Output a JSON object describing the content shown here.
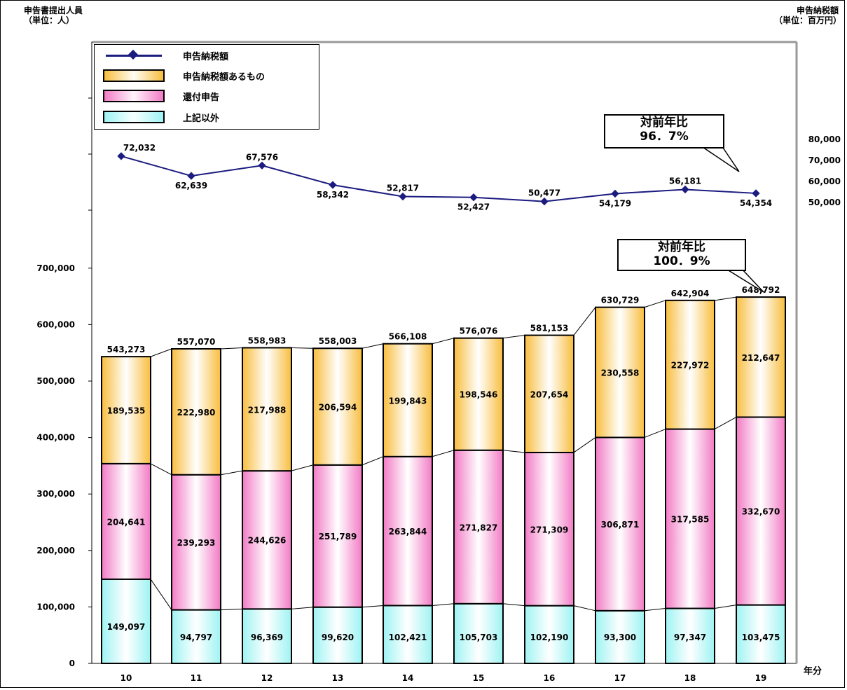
{
  "header": {
    "left_title": "申告書提出人員",
    "left_unit": "（単位：人）",
    "right_title": "申告納税額",
    "right_unit": "（単位：百万円）",
    "x_unit": "年分"
  },
  "legend": {
    "items": [
      {
        "label": "申告納税額",
        "icon": "line-diamond-marker"
      },
      {
        "label": "申告納税額あるもの",
        "color": "#f8bd3e"
      },
      {
        "label": "還付申告",
        "color": "#f27bc5"
      },
      {
        "label": "上記以外",
        "color": "#9ff3f3"
      }
    ]
  },
  "callouts": {
    "tax": {
      "line1": "対前年比",
      "line2": "96．7%"
    },
    "filers": {
      "line1": "対前年比",
      "line2": "100．9%"
    }
  },
  "chart_data": {
    "type": "bar",
    "stacked": true,
    "categories": [
      "10",
      "11",
      "12",
      "13",
      "14",
      "15",
      "16",
      "17",
      "18",
      "19"
    ],
    "series": [
      {
        "name": "上記以外",
        "values": [
          149097,
          94797,
          96369,
          99620,
          102421,
          105703,
          102190,
          93300,
          97347,
          103475
        ],
        "labels": [
          "149,097",
          "94,797",
          "96,369",
          "99,620",
          "102,421",
          "105,703",
          "102,190",
          "93,300",
          "97,347",
          "103,475"
        ]
      },
      {
        "name": "還付申告",
        "values": [
          204641,
          239293,
          244626,
          251789,
          263844,
          271827,
          271309,
          306871,
          317585,
          332670
        ],
        "labels": [
          "204,641",
          "239,293",
          "244,626",
          "251,789",
          "263,844",
          "271,827",
          "271,309",
          "306,871",
          "317,585",
          "332,670"
        ]
      },
      {
        "name": "申告納税額あるもの",
        "values": [
          189535,
          222980,
          217988,
          206594,
          199843,
          198546,
          207654,
          230558,
          227972,
          212647
        ],
        "labels": [
          "189,535",
          "222,980",
          "217,988",
          "206,594",
          "199,843",
          "198,546",
          "207,654",
          "230,558",
          "227,972",
          "212,647"
        ]
      }
    ],
    "totals": [
      543273,
      557070,
      558983,
      558003,
      566108,
      576076,
      581153,
      630729,
      642904,
      648792
    ],
    "total_labels": [
      "543,273",
      "557,070",
      "558,983",
      "558,003",
      "566,108",
      "576,076",
      "581,153",
      "630,729",
      "642,904",
      "648,792"
    ],
    "ylim": [
      0,
      700000
    ],
    "y_ticks": [
      0,
      100000,
      200000,
      300000,
      400000,
      500000,
      600000,
      700000
    ],
    "y_tick_labels": [
      "0",
      "100,000",
      "200,000",
      "300,000",
      "400,000",
      "500,000",
      "600,000",
      "700,000"
    ],
    "line_series": {
      "name": "申告納税額",
      "axis": "right",
      "values": [
        72032,
        62639,
        67576,
        58342,
        52817,
        52427,
        50477,
        54179,
        56181,
        54354
      ],
      "labels": [
        "72,032",
        "62,639",
        "67,576",
        "58,342",
        "52,817",
        "52,427",
        "50,477",
        "54,179",
        "56,181",
        "54,354"
      ],
      "label_positions": [
        "above",
        "below",
        "above",
        "below",
        "above",
        "below",
        "above",
        "below",
        "above",
        "below"
      ]
    },
    "y2_ticks": [
      50000,
      60000,
      70000,
      80000
    ],
    "y2_tick_labels": [
      "50,000",
      "60,000",
      "70,000",
      "80,000"
    ],
    "colors": {
      "other": "#9ff3f3",
      "refund": "#f27bc5",
      "payable": "#f8bd3e",
      "line": "#1b1b80"
    }
  }
}
